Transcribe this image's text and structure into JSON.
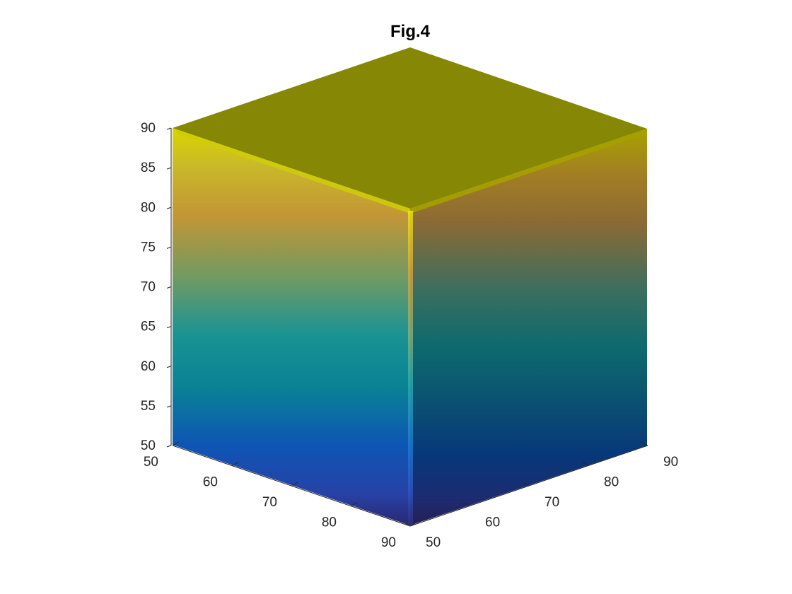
{
  "chart_data": {
    "type": "surface3d",
    "title": "Fig.4",
    "shape": "cube",
    "x": {
      "label": "",
      "range": [
        50,
        90
      ],
      "ticks": [
        50,
        60,
        70,
        80,
        90
      ]
    },
    "y": {
      "label": "",
      "range": [
        50,
        90
      ],
      "ticks": [
        50,
        60,
        70,
        80,
        90
      ]
    },
    "z": {
      "label": "",
      "range": [
        50,
        90
      ],
      "ticks": [
        50,
        55,
        60,
        65,
        70,
        75,
        80,
        85,
        90
      ]
    },
    "colormap": "parula",
    "color_by": "z",
    "grid": false,
    "legend": "none"
  }
}
